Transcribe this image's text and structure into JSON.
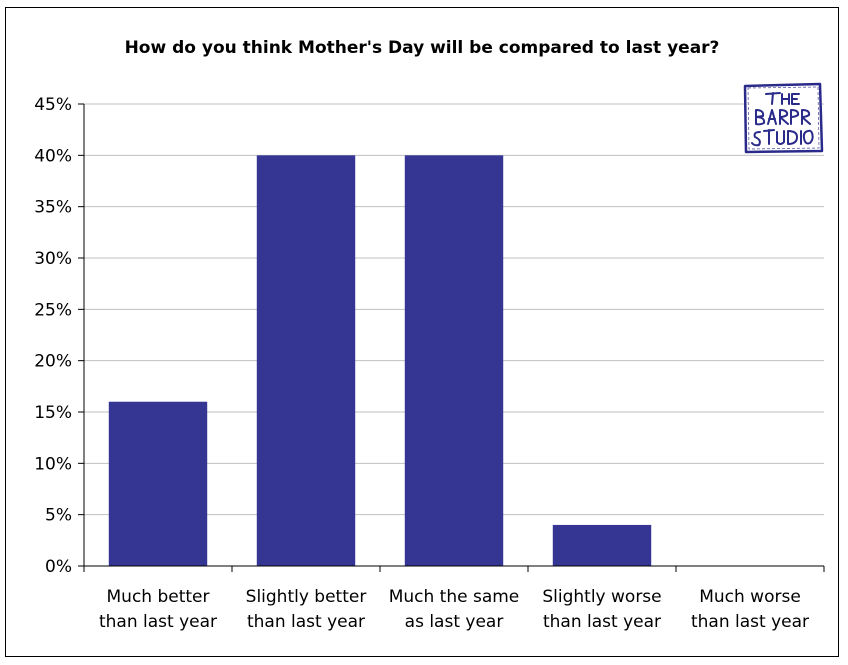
{
  "chart_data": {
    "type": "bar",
    "title": "How do you think Mother's Day will be compared to last year?",
    "categories": [
      [
        "Much better",
        "than last year"
      ],
      [
        "Slightly better",
        "than last year"
      ],
      [
        "Much the same",
        "as last year"
      ],
      [
        "Slightly worse",
        "than last year"
      ],
      [
        "Much worse",
        "than last year"
      ]
    ],
    "values": [
      16,
      40,
      40,
      4,
      0
    ],
    "value_format": "percent",
    "ylim": [
      0,
      45
    ],
    "yticks": [
      "0%",
      "5%",
      "10%",
      "15%",
      "20%",
      "25%",
      "30%",
      "35%",
      "40%",
      "45%"
    ],
    "grid": true,
    "legend": "none",
    "bar_color": "#353594",
    "grid_color": "#c0c0c0",
    "axis_color": "#000000"
  },
  "logo": {
    "text": "THE BARER STUDIO",
    "color": "#2a2a8a"
  }
}
